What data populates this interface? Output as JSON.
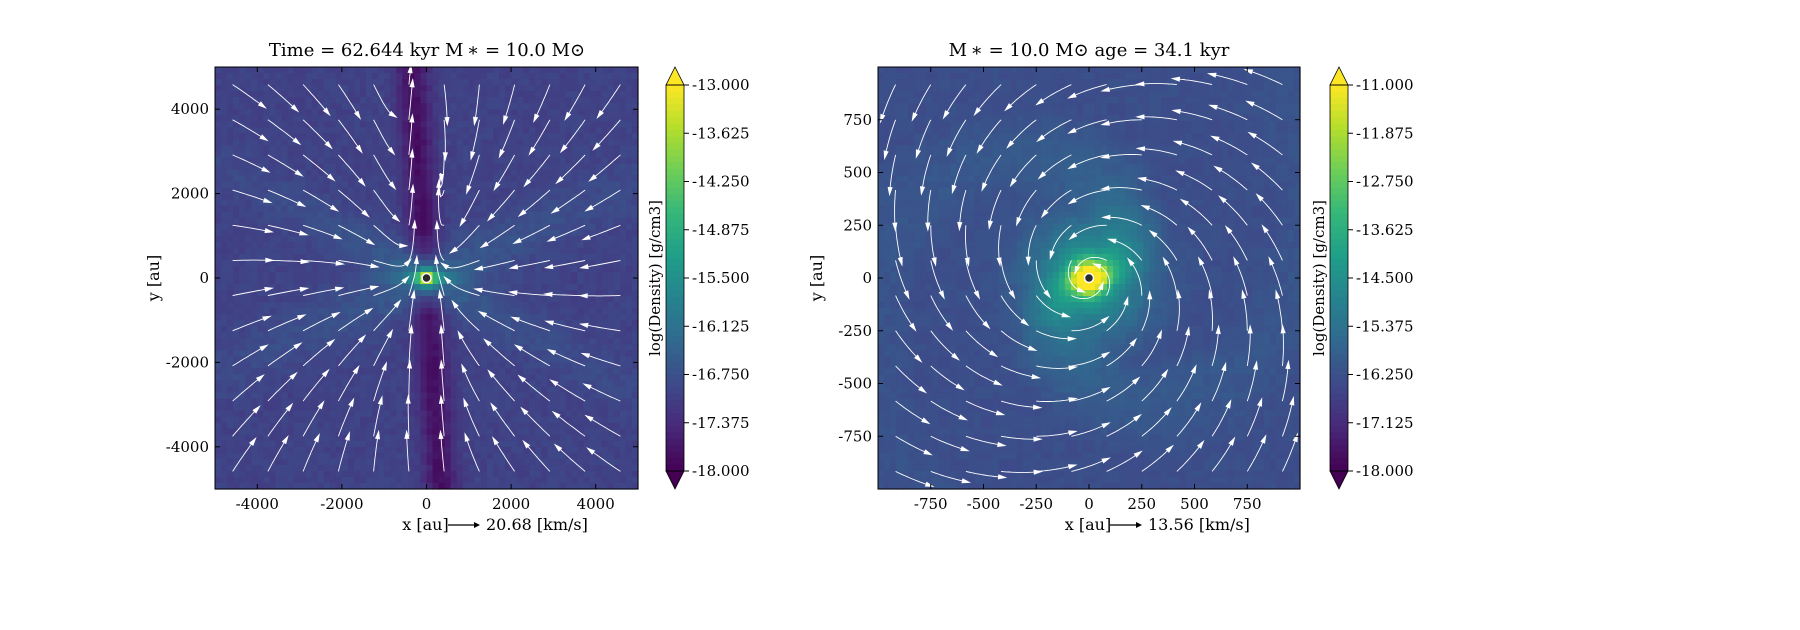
{
  "colormap": [
    "#440154",
    "#482878",
    "#3e4989",
    "#31688e",
    "#26828e",
    "#1f9e89",
    "#35b779",
    "#6ece58",
    "#b5de2b",
    "#fde725"
  ],
  "streamline_color": "#ffffff",
  "star_marker": {
    "fill": "#2b2b2b",
    "edge": "#ffffff"
  },
  "chart_data": [
    {
      "type": "heatmap",
      "title": "Time = 62.644 kyr    M ∗ = 10.0 M⊙",
      "xlabel": "x [au]",
      "ylabel": "y [au]",
      "xlim": [
        -5000,
        5000
      ],
      "ylim": [
        -5000,
        5000
      ],
      "xticks": [
        -4000,
        -2000,
        0,
        2000,
        4000
      ],
      "yticks": [
        -4000,
        -2000,
        0,
        2000,
        4000
      ],
      "xtick_labels": [
        "-4000",
        "-2000",
        "0",
        "2000",
        "4000"
      ],
      "ytick_labels": [
        "-4000",
        "-2000",
        "0",
        "2000",
        "4000"
      ],
      "colorbar": {
        "label": "log(Density) [g/cm3]",
        "range": [
          -18.0,
          -13.0
        ],
        "ticks": [
          -13.0,
          -13.625,
          -14.25,
          -14.875,
          -15.5,
          -16.125,
          -16.75,
          -17.375,
          -18.0
        ],
        "tick_labels": [
          "-13.000",
          "-13.625",
          "-14.250",
          "-14.875",
          "-15.500",
          "-16.125",
          "-16.750",
          "-17.375",
          "-18.000"
        ],
        "extend": "both"
      },
      "velocity_key": {
        "value": 20.68,
        "label": "20.68 [km/s]"
      },
      "morphology": "outflow"
    },
    {
      "type": "heatmap",
      "title": "M ∗ = 10.0 M⊙          age = 34.1 kyr",
      "xlabel": "x [au]",
      "ylabel": "y [au]",
      "xlim": [
        -1000,
        1000
      ],
      "ylim": [
        -1000,
        1000
      ],
      "xticks": [
        -750,
        -500,
        -250,
        0,
        250,
        500,
        750
      ],
      "yticks": [
        -750,
        -500,
        -250,
        0,
        250,
        500,
        750
      ],
      "xtick_labels": [
        "-750",
        "-500",
        "-250",
        "0",
        "250",
        "500",
        "750"
      ],
      "ytick_labels": [
        "-750",
        "-500",
        "-250",
        "0",
        "250",
        "500",
        "750"
      ],
      "colorbar": {
        "label": "log(Density) [g/cm3]",
        "range": [
          -18.0,
          -11.0
        ],
        "ticks": [
          -11.0,
          -11.875,
          -12.75,
          -13.625,
          -14.5,
          -15.375,
          -16.25,
          -17.125,
          -18.0
        ],
        "tick_labels": [
          "-11.000",
          "-11.875",
          "-12.750",
          "-13.625",
          "-14.500",
          "-15.375",
          "-16.250",
          "-17.125",
          "-18.000"
        ],
        "extend": "both"
      },
      "velocity_key": {
        "value": 13.56,
        "label": "13.56 [km/s]"
      },
      "morphology": "disk"
    }
  ]
}
